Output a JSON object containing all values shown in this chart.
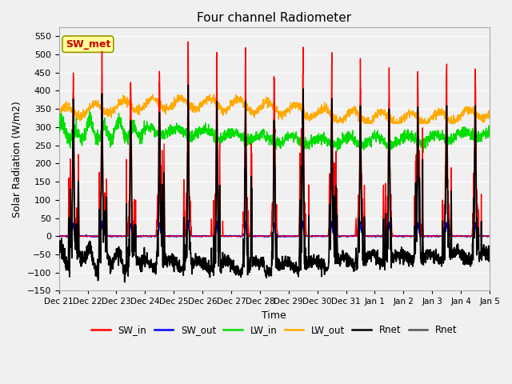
{
  "title": "Four channel Radiometer",
  "xlabel": "Time",
  "ylabel": "Solar Radiation (W/m2)",
  "ylim": [
    -150,
    575
  ],
  "yticks": [
    -150,
    -100,
    -50,
    0,
    50,
    100,
    150,
    200,
    250,
    300,
    350,
    400,
    450,
    500,
    550
  ],
  "annotation_text": "SW_met",
  "annotation_box_color": "#FFFF99",
  "annotation_text_color": "#CC0000",
  "annotation_border_color": "#999900",
  "bg_color": "#f0f0f0",
  "plot_bg_color": "#f0f0f0",
  "grid_color": "#ffffff",
  "line_colors": {
    "SW_in": "#ff0000",
    "SW_out": "#0000ff",
    "LW_in": "#00dd00",
    "LW_out": "#ffaa00",
    "Rnet": "#000000"
  },
  "n_days": 15,
  "lw_in_base": 280,
  "lw_out_base": 345,
  "sw_peak": 500
}
